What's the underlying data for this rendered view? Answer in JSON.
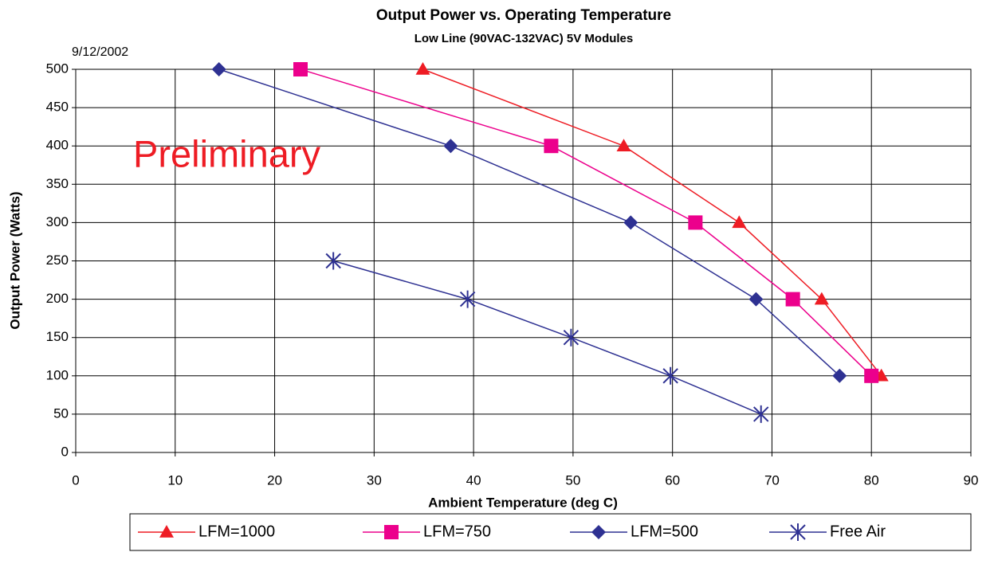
{
  "chart_data": {
    "type": "line",
    "title": "Output Power vs. Operating Temperature",
    "subtitle": "Low Line (90VAC-132VAC) 5V Modules",
    "date": "9/12/2002",
    "annotation": "Preliminary",
    "annotation_color": "#ee1c24",
    "xlabel": "Ambient Temperature (deg C)",
    "ylabel": "Output Power (Watts)",
    "xlim": [
      0,
      90
    ],
    "ylim": [
      0,
      500
    ],
    "xticks": [
      0,
      10,
      20,
      30,
      40,
      50,
      60,
      70,
      80,
      90
    ],
    "yticks": [
      0,
      50,
      100,
      150,
      200,
      250,
      300,
      350,
      400,
      450,
      500
    ],
    "grid": true,
    "legend": "bottom",
    "series": [
      {
        "name": "LFM=1000",
        "color": "#ee1c24",
        "marker": "triangle",
        "x": [
          34.9,
          55.1,
          66.7,
          75.0,
          81.0
        ],
        "values": [
          500,
          400,
          300,
          200,
          100
        ]
      },
      {
        "name": "LFM=750",
        "color": "#ec008c",
        "marker": "square",
        "x": [
          22.6,
          47.8,
          62.3,
          72.1,
          80.0
        ],
        "values": [
          500,
          400,
          300,
          200,
          100
        ]
      },
      {
        "name": "LFM=500",
        "color": "#2e3192",
        "marker": "diamond",
        "x": [
          14.4,
          37.7,
          55.8,
          68.4,
          76.8
        ],
        "values": [
          500,
          400,
          300,
          200,
          100
        ]
      },
      {
        "name": "Free Air",
        "color": "#2e3192",
        "marker": "star",
        "x": [
          25.9,
          39.4,
          49.8,
          59.8,
          68.9
        ],
        "values": [
          250,
          200,
          150,
          100,
          50
        ]
      }
    ]
  }
}
